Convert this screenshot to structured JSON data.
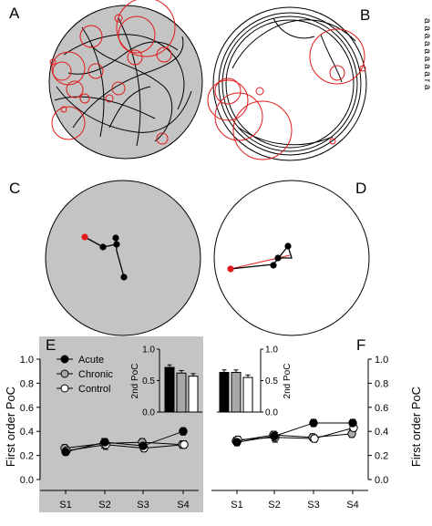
{
  "panels": {
    "a": "A",
    "b": "B",
    "c": "C",
    "d": "D",
    "e": "E",
    "f": "F"
  },
  "edge_text": "a a a a a a a a r a",
  "legend": [
    {
      "label": "Acute",
      "marker": "filled"
    },
    {
      "label": "Chronic",
      "marker": "gray"
    },
    {
      "label": "Control",
      "marker": "open"
    }
  ],
  "colors": {
    "acute": "#000000",
    "chronic": "#a8a8a8",
    "control": "#ffffff",
    "arena_shaded": "#c4c4c4",
    "path_red": "#e11b1b",
    "dot_red": "#e11b1b"
  },
  "chart_data": [
    {
      "panel": "E",
      "type": "line",
      "title": "",
      "xlabel": "",
      "ylabel": "First order PoC",
      "x": [
        "S1",
        "S2",
        "S3",
        "S4"
      ],
      "ylim": [
        0.0,
        1.0
      ],
      "yticks": [
        "0.0",
        "0.2",
        "0.4",
        "0.6",
        "0.8",
        "1.0"
      ],
      "background": "shaded",
      "series": [
        {
          "name": "Acute",
          "values": [
            0.23,
            0.31,
            0.28,
            0.4
          ],
          "err": [
            0.03,
            0.03,
            0.03,
            0.03
          ]
        },
        {
          "name": "Chronic",
          "values": [
            0.26,
            0.3,
            0.31,
            0.29
          ],
          "err": [
            0.03,
            0.04,
            0.03,
            0.03
          ]
        },
        {
          "name": "Control",
          "values": [
            0.24,
            0.29,
            0.26,
            0.29
          ],
          "err": [
            0.03,
            0.04,
            0.03,
            0.03
          ]
        }
      ]
    },
    {
      "panel": "F",
      "type": "line",
      "title": "",
      "xlabel": "",
      "ylabel": "First order PoC",
      "x": [
        "S1",
        "S2",
        "S3",
        "S4"
      ],
      "ylim": [
        0.0,
        1.0
      ],
      "yticks": [
        "0.0",
        "0.2",
        "0.4",
        "0.6",
        "0.8",
        "1.0"
      ],
      "background": "white",
      "series": [
        {
          "name": "Acute",
          "values": [
            0.31,
            0.36,
            0.47,
            0.47
          ],
          "err": [
            0.03,
            0.04,
            0.03,
            0.03
          ]
        },
        {
          "name": "Chronic",
          "values": [
            0.32,
            0.37,
            0.35,
            0.38
          ],
          "err": [
            0.03,
            0.03,
            0.03,
            0.03
          ]
        },
        {
          "name": "Control",
          "values": [
            0.33,
            0.35,
            0.34,
            0.43
          ],
          "err": [
            0.03,
            0.04,
            0.03,
            0.03
          ]
        }
      ]
    },
    {
      "panel": "E-inset",
      "type": "bar",
      "ylabel": "2nd PoC",
      "ylim": [
        0.0,
        1.0
      ],
      "yticks": [
        "0.0",
        "0.5",
        "1.0"
      ],
      "categories": [
        "Acute",
        "Chronic",
        "Control"
      ],
      "values": [
        0.71,
        0.62,
        0.57
      ],
      "err": [
        0.04,
        0.04,
        0.04
      ]
    },
    {
      "panel": "F-inset",
      "type": "bar",
      "ylabel": "2nd PoC",
      "ylim": [
        0.0,
        1.0
      ],
      "yticks": [
        "0.0",
        "0.5",
        "1.0"
      ],
      "categories": [
        "Acute",
        "Chronic",
        "Control"
      ],
      "values": [
        0.63,
        0.63,
        0.55
      ],
      "err": [
        0.04,
        0.04,
        0.04
      ]
    }
  ]
}
